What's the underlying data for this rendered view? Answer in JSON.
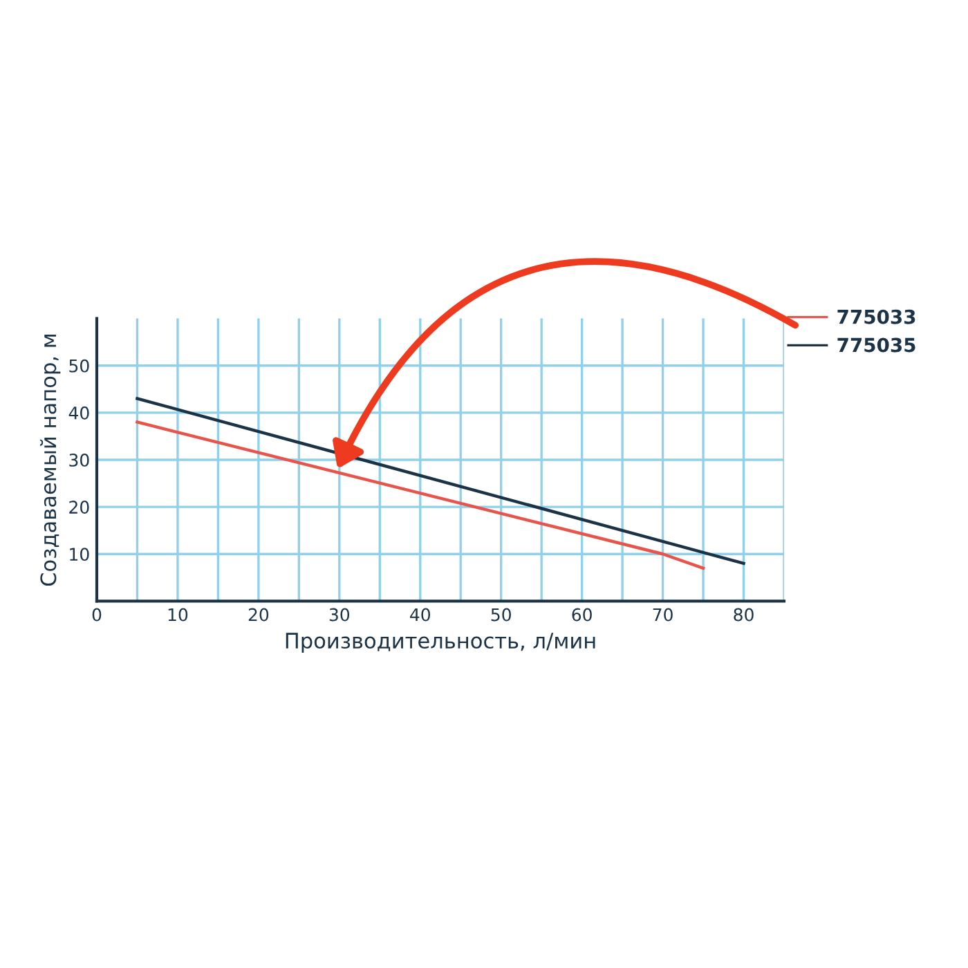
{
  "chart_data": {
    "type": "line",
    "xlabel": "Производительность, л/мин",
    "ylabel": "Создаваемый напор, м",
    "xlim": [
      0,
      85
    ],
    "ylim": [
      0,
      60
    ],
    "xticks": [
      0,
      {
        "value": 5,
        "label": null
      },
      10,
      {
        "value": 15,
        "label": null
      },
      20,
      {
        "value": 25,
        "label": null
      },
      30,
      {
        "value": 35,
        "label": null
      },
      40,
      {
        "value": 45,
        "label": null
      },
      50,
      {
        "value": 55,
        "label": null
      },
      60,
      {
        "value": 65,
        "label": null
      },
      70,
      {
        "value": 75,
        "label": null
      },
      80,
      {
        "value": 85,
        "label": null
      }
    ],
    "yticks": [
      10,
      20,
      30,
      40,
      50
    ],
    "grid": true,
    "legend": "top right",
    "marker": "none",
    "line_style": "solid",
    "series": [
      {
        "name": "775033",
        "color": "#e8534a",
        "x": [
          5,
          70,
          75
        ],
        "values": [
          38,
          10,
          7
        ]
      },
      {
        "name": "775035",
        "color": "#1c3347",
        "x": [
          5,
          80
        ],
        "values": [
          43,
          8
        ]
      }
    ]
  }
}
